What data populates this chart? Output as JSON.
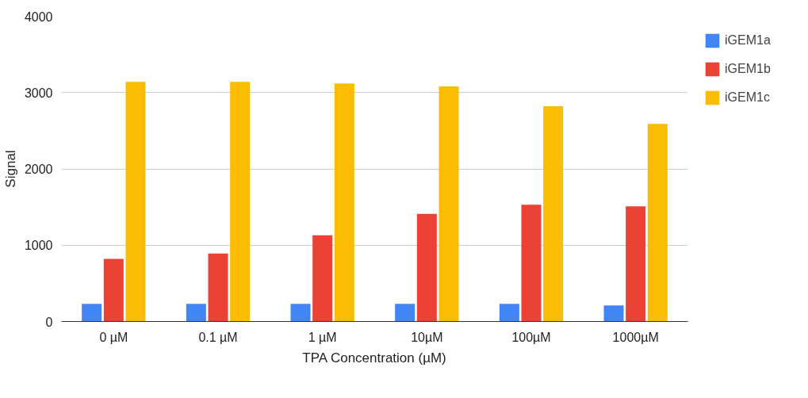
{
  "chart_data": {
    "type": "bar",
    "xlabel": "TPA Concentration (µM)",
    "ylabel": "Signal",
    "categories": [
      "0 µM",
      "0.1 µM",
      "1 µM",
      "10µM",
      "100µM",
      "1000µM"
    ],
    "series": [
      {
        "name": "iGEM1a",
        "color": "#4285f4",
        "values": [
          230,
          230,
          230,
          230,
          230,
          210
        ]
      },
      {
        "name": "iGEM1b",
        "color": "#ea4335",
        "values": [
          820,
          890,
          1130,
          1410,
          1530,
          1510
        ]
      },
      {
        "name": "iGEM1c",
        "color": "#fbbc04",
        "values": [
          3140,
          3140,
          3120,
          3080,
          2820,
          2590
        ]
      }
    ],
    "ylim": [
      0,
      4000
    ],
    "yticks": [
      0,
      1000,
      2000,
      3000,
      4000
    ],
    "grid": "y",
    "legend": "top right"
  }
}
